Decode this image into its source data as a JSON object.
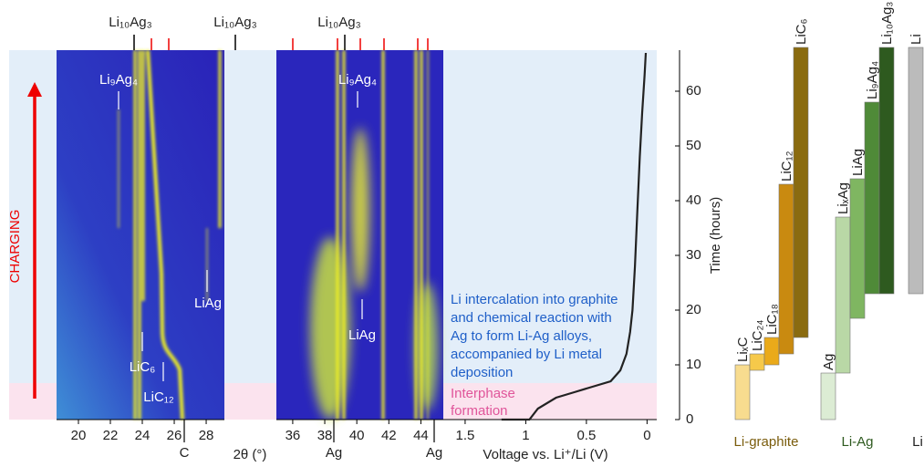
{
  "xrd_left": {
    "xlim": [
      18.63,
      29.14
    ],
    "xticks": [
      20,
      22,
      24,
      26,
      28
    ],
    "xlabel": "2θ (°)",
    "peak_labels": [
      "C"
    ]
  },
  "xrd_middle": {
    "xlim": [
      34.98,
      45.4
    ],
    "xticks": [
      36,
      38,
      40,
      42,
      44
    ],
    "peak_labels": [
      "Ag",
      "Ag"
    ]
  },
  "annotations": {
    "top": [
      "Li₁₀Ag₃",
      "Li₁₀Ag₃",
      "Li₁₀Ag₃"
    ],
    "left": [
      "Li₉Ag₄",
      "LiAg",
      "LiC₆",
      "LiC₁₂"
    ],
    "middle": [
      "Li₉Ag₄",
      "LiAg"
    ],
    "charging": "CHARGING",
    "reaction_note": [
      "Li intercalation into graphite",
      "and chemical reaction with",
      "Ag to form Li-Ag alloys,",
      "accompanied by Li metal",
      "deposition"
    ],
    "interphase_note": [
      "Interphase",
      "formation"
    ]
  },
  "voltage": {
    "type": "line",
    "xlabel": "Voltage vs. Li⁺/Li (V)",
    "xlim": [
      1.68,
      -0.08
    ],
    "xticks": [
      1.5,
      1,
      0.5,
      0
    ],
    "ylabel": "Time (hours)",
    "ylim": [
      0,
      67.5
    ],
    "yticks": [
      0,
      10,
      20,
      30,
      40,
      50,
      60
    ],
    "color": "#222222",
    "x": [
      1.2,
      0.97,
      0.9,
      0.75,
      0.6,
      0.45,
      0.3,
      0.22,
      0.17,
      0.14,
      0.12,
      0.1,
      0.08,
      0.06,
      0.04,
      0.02,
      0.01
    ],
    "values": [
      0,
      0,
      2,
      4,
      5,
      6,
      7,
      9,
      12,
      16,
      20,
      28,
      38,
      48,
      56,
      63,
      67
    ]
  },
  "phases": {
    "type": "gantt",
    "groups": [
      {
        "name": "Li-graphite",
        "color": "#7a5c0c"
      },
      {
        "name": "Li-Ag",
        "color": "#2e5a1f"
      },
      {
        "name": "Li",
        "color": "#222222"
      }
    ],
    "bars": [
      {
        "name": "LiₓC",
        "group": 0,
        "start": 0,
        "end": 10,
        "color": "#f8dc8f"
      },
      {
        "name": "LiC₂₄",
        "group": 0,
        "start": 9,
        "end": 12,
        "color": "#f6c94a"
      },
      {
        "name": "LiC₁₈",
        "group": 0,
        "start": 10,
        "end": 15,
        "color": "#eaaa1a"
      },
      {
        "name": "LiC₁₂",
        "group": 0,
        "start": 12,
        "end": 43,
        "color": "#c98a10"
      },
      {
        "name": "LiC₆",
        "group": 0,
        "start": 15,
        "end": 68,
        "color": "#8a6b10"
      },
      {
        "name": "Ag",
        "group": 1,
        "start": 0,
        "end": 8.5,
        "color": "#dcecd4"
      },
      {
        "name": "LiₓAg",
        "group": 1,
        "start": 8.5,
        "end": 37,
        "color": "#b9d8a6"
      },
      {
        "name": "LiAg",
        "group": 1,
        "start": 18.5,
        "end": 44,
        "color": "#7fb661"
      },
      {
        "name": "Li₉Ag₄",
        "group": 1,
        "start": 23,
        "end": 58,
        "color": "#4f8a38"
      },
      {
        "name": "Li₁₀Ag₃",
        "group": 1,
        "start": 23,
        "end": 68,
        "color": "#2e5a1f"
      },
      {
        "name": "Li",
        "group": 2,
        "start": 23,
        "end": 68,
        "color": "#bbbbbb"
      }
    ]
  }
}
